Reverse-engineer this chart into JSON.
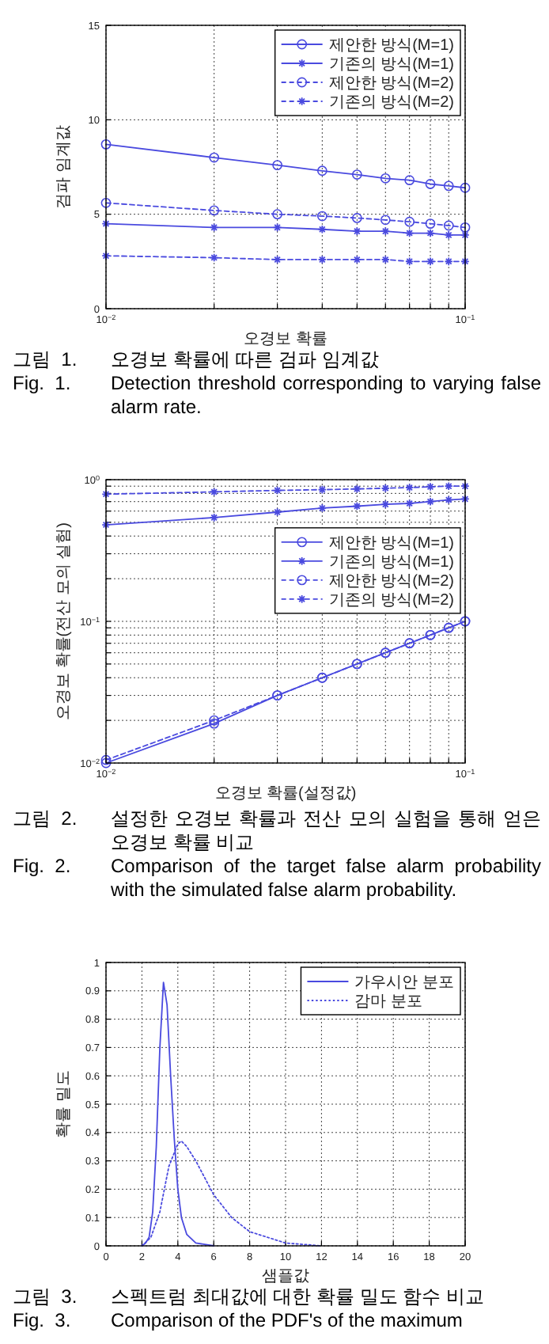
{
  "chart_data": [
    {
      "type": "line",
      "xlabel": "오경보 확률",
      "ylabel": "검파 임계값",
      "log": "x",
      "grid": true,
      "legend": "top right",
      "x": [
        0.01,
        0.02,
        0.03,
        0.04,
        0.05,
        0.06,
        0.07,
        0.08,
        0.09,
        0.1
      ],
      "xlim": [
        0.01,
        0.1
      ],
      "xticks": [
        {
          "value": 0.01,
          "label": "10$^{−2}$"
        },
        {
          "value": 0.02,
          "label": null
        },
        {
          "value": 0.03,
          "label": null
        },
        {
          "value": 0.04,
          "label": null
        },
        {
          "value": 0.05,
          "label": null
        },
        {
          "value": 0.06,
          "label": null
        },
        {
          "value": 0.07,
          "label": null
        },
        {
          "value": 0.08,
          "label": null
        },
        {
          "value": 0.09,
          "label": null
        },
        {
          "value": 0.1,
          "label": "10$^{−1}$"
        }
      ],
      "ylim": [
        0,
        15
      ],
      "yticks": [
        0,
        5,
        10,
        15
      ],
      "series": [
        {
          "name": "제안한 방식(M=1)",
          "color": "#4a4adf",
          "marker": "circle",
          "line_style": "solid",
          "values": [
            8.7,
            8.0,
            7.6,
            7.3,
            7.1,
            6.9,
            6.8,
            6.6,
            6.5,
            6.4
          ]
        },
        {
          "name": "기존의 방식(M=1)",
          "color": "#4a4adf",
          "marker": "cross",
          "line_style": "solid",
          "values": [
            4.5,
            4.3,
            4.3,
            4.2,
            4.1,
            4.1,
            4.0,
            4.0,
            3.9,
            3.9
          ]
        },
        {
          "name": "제안한 방식(M=2)",
          "color": "#4a4adf",
          "marker": "circle",
          "line_style": "dashed",
          "values": [
            5.6,
            5.2,
            5.0,
            4.9,
            4.8,
            4.7,
            4.6,
            4.5,
            4.4,
            4.3
          ]
        },
        {
          "name": "기존의 방식(M=2)",
          "color": "#4a4adf",
          "marker": "cross",
          "line_style": "dashed",
          "values": [
            2.8,
            2.7,
            2.6,
            2.6,
            2.6,
            2.6,
            2.5,
            2.5,
            2.5,
            2.5
          ]
        }
      ],
      "annotations": [
        "그림  1.  오경보 확률에 따른 검파 임계값",
        "Fig.  1.  Detection threshold corresponding to varying false alarm rate."
      ]
    },
    {
      "type": "line",
      "xlabel": "오경보 확률(설정값)",
      "ylabel": "오경보 확률(전산 모의 실험)",
      "log": "xy",
      "grid": true,
      "legend": "right",
      "x": [
        0.01,
        0.02,
        0.03,
        0.04,
        0.05,
        0.06,
        0.07,
        0.08,
        0.09,
        0.1
      ],
      "xlim": [
        0.01,
        0.1
      ],
      "xticks": [
        {
          "value": 0.01,
          "label": "10$^{−2}$"
        },
        {
          "value": 0.02,
          "label": null
        },
        {
          "value": 0.03,
          "label": null
        },
        {
          "value": 0.04,
          "label": null
        },
        {
          "value": 0.05,
          "label": null
        },
        {
          "value": 0.06,
          "label": null
        },
        {
          "value": 0.07,
          "label": null
        },
        {
          "value": 0.08,
          "label": null
        },
        {
          "value": 0.09,
          "label": null
        },
        {
          "value": 0.1,
          "label": "10$^{−1}$"
        }
      ],
      "ylim": [
        0.01,
        1
      ],
      "yticks": [
        {
          "value": 0.01,
          "label": "10$^{−2}$"
        },
        {
          "value": 0.02,
          "label": null
        },
        {
          "value": 0.03,
          "label": null
        },
        {
          "value": 0.04,
          "label": null
        },
        {
          "value": 0.05,
          "label": null
        },
        {
          "value": 0.06,
          "label": null
        },
        {
          "value": 0.07,
          "label": null
        },
        {
          "value": 0.08,
          "label": null
        },
        {
          "value": 0.09,
          "label": null
        },
        {
          "value": 0.1,
          "label": "10$^{−1}$"
        },
        {
          "value": 0.2,
          "label": null
        },
        {
          "value": 0.3,
          "label": null
        },
        {
          "value": 0.4,
          "label": null
        },
        {
          "value": 0.5,
          "label": null
        },
        {
          "value": 0.6,
          "label": null
        },
        {
          "value": 0.7,
          "label": null
        },
        {
          "value": 0.8,
          "label": null
        },
        {
          "value": 0.9,
          "label": null
        },
        {
          "value": 1,
          "label": "10$^{0}$"
        }
      ],
      "series": [
        {
          "name": "제안한 방식(M=1)",
          "color": "#4a4adf",
          "marker": "circle",
          "line_style": "solid",
          "values": [
            0.01,
            0.019,
            0.03,
            0.04,
            0.05,
            0.06,
            0.07,
            0.08,
            0.09,
            0.1
          ]
        },
        {
          "name": "기존의 방식(M=1)",
          "color": "#4a4adf",
          "marker": "cross",
          "line_style": "solid",
          "values": [
            0.48,
            0.54,
            0.59,
            0.63,
            0.65,
            0.67,
            0.68,
            0.7,
            0.72,
            0.73
          ]
        },
        {
          "name": "제안한 방식(M=2)",
          "color": "#4a4adf",
          "marker": "circle",
          "line_style": "dashed",
          "values": [
            0.0105,
            0.02,
            0.03,
            0.04,
            0.05,
            0.06,
            0.07,
            0.08,
            0.09,
            0.1
          ]
        },
        {
          "name": "기존의 방식(M=2)",
          "color": "#4a4adf",
          "marker": "cross",
          "line_style": "dashed",
          "values": [
            0.79,
            0.82,
            0.84,
            0.85,
            0.86,
            0.87,
            0.88,
            0.89,
            0.9,
            0.9
          ]
        }
      ],
      "annotations": [
        "그림  2.  설정한 오경보 확률과 전산 모의 실험을 통해 얻은 오경보 확률 비교",
        "Fig.  2.  Comparison of the target false alarm probability with the simulated false alarm probability."
      ]
    },
    {
      "type": "line",
      "xlabel": "샘플값",
      "ylabel": "확률 밀도",
      "grid": true,
      "legend": "top right",
      "xlim": [
        0,
        20
      ],
      "xticks": [
        0,
        2,
        4,
        6,
        8,
        10,
        12,
        14,
        16,
        18,
        20
      ],
      "ylim": [
        0,
        1
      ],
      "yticks": [
        0,
        0.1,
        0.2,
        0.3,
        0.4,
        0.5,
        0.6,
        0.7,
        0.8,
        0.9,
        1
      ],
      "series": [
        {
          "name": "가우시안 분포",
          "color": "#4a4adf",
          "marker": "none",
          "line_style": "solid",
          "x": [
            2,
            2.2,
            2.4,
            2.6,
            2.8,
            3.0,
            3.2,
            3.4,
            3.6,
            3.8,
            4.0,
            4.2,
            4.5,
            5,
            6
          ],
          "values": [
            0,
            0.01,
            0.03,
            0.12,
            0.35,
            0.7,
            0.93,
            0.85,
            0.6,
            0.38,
            0.2,
            0.1,
            0.04,
            0.01,
            0
          ]
        },
        {
          "name": "감마 분포",
          "color": "#4a4adf",
          "marker": "none",
          "line_style": "dotted",
          "x": [
            2,
            2.5,
            3,
            3.5,
            4,
            4.2,
            4.5,
            5,
            5.5,
            6,
            7,
            8,
            9,
            10,
            12
          ],
          "values": [
            0,
            0.03,
            0.12,
            0.28,
            0.36,
            0.37,
            0.35,
            0.3,
            0.24,
            0.18,
            0.1,
            0.05,
            0.03,
            0.01,
            0
          ]
        }
      ],
      "annotations": [
        "그림  3.  스펙트럼 최대값에 대한 확률 밀도 함수 비교",
        "Fig.  3.  Comparison of the PDF's of the maximum"
      ]
    }
  ]
}
